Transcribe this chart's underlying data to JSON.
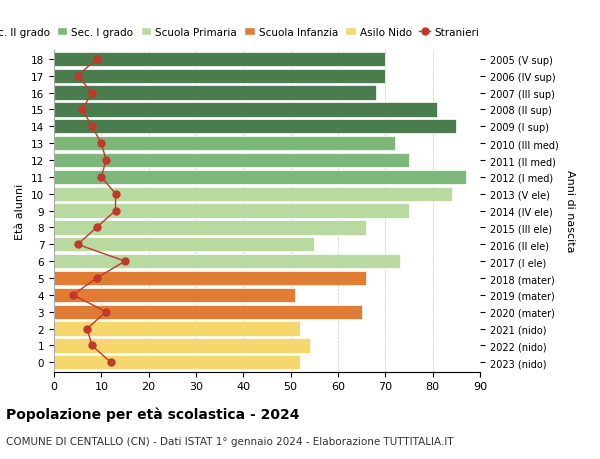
{
  "ages": [
    0,
    1,
    2,
    3,
    4,
    5,
    6,
    7,
    8,
    9,
    10,
    11,
    12,
    13,
    14,
    15,
    16,
    17,
    18
  ],
  "years": [
    "2023 (nido)",
    "2022 (nido)",
    "2021 (nido)",
    "2020 (mater)",
    "2019 (mater)",
    "2018 (mater)",
    "2017 (I ele)",
    "2016 (II ele)",
    "2015 (III ele)",
    "2014 (IV ele)",
    "2013 (V ele)",
    "2012 (I med)",
    "2011 (II med)",
    "2010 (III med)",
    "2009 (I sup)",
    "2008 (II sup)",
    "2007 (III sup)",
    "2006 (IV sup)",
    "2005 (V sup)"
  ],
  "bar_values": [
    52,
    54,
    52,
    65,
    51,
    66,
    73,
    55,
    66,
    75,
    84,
    87,
    75,
    72,
    85,
    81,
    68,
    70,
    70
  ],
  "bar_colors": [
    "#f5d76e",
    "#f5d76e",
    "#f5d76e",
    "#e07c34",
    "#e07c34",
    "#e07c34",
    "#b8d9a0",
    "#b8d9a0",
    "#b8d9a0",
    "#b8d9a0",
    "#b8d9a0",
    "#7db87a",
    "#7db87a",
    "#7db87a",
    "#4a7c4e",
    "#4a7c4e",
    "#4a7c4e",
    "#4a7c4e",
    "#4a7c4e"
  ],
  "stranieri_values": [
    12,
    8,
    7,
    11,
    4,
    9,
    15,
    5,
    9,
    13,
    13,
    10,
    11,
    10,
    8,
    6,
    8,
    5,
    9
  ],
  "stranieri_color": "#c0392b",
  "legend_labels": [
    "Sec. II grado",
    "Sec. I grado",
    "Scuola Primaria",
    "Scuola Infanzia",
    "Asilo Nido",
    "Stranieri"
  ],
  "legend_colors": [
    "#4a7c4e",
    "#7db87a",
    "#b8d9a0",
    "#e07c34",
    "#f5d76e",
    "#c0392b"
  ],
  "ylabel_left": "Età alunni",
  "ylabel_right": "Anni di nascita",
  "title": "Popolazione per età scolastica - 2024",
  "subtitle": "COMUNE DI CENTALLO (CN) - Dati ISTAT 1° gennaio 2024 - Elaborazione TUTTITALIA.IT",
  "xlim": [
    0,
    90
  ],
  "xticks": [
    0,
    10,
    20,
    30,
    40,
    50,
    60,
    70,
    80,
    90
  ],
  "bg_color": "#ffffff",
  "grid_color": "#cccccc"
}
